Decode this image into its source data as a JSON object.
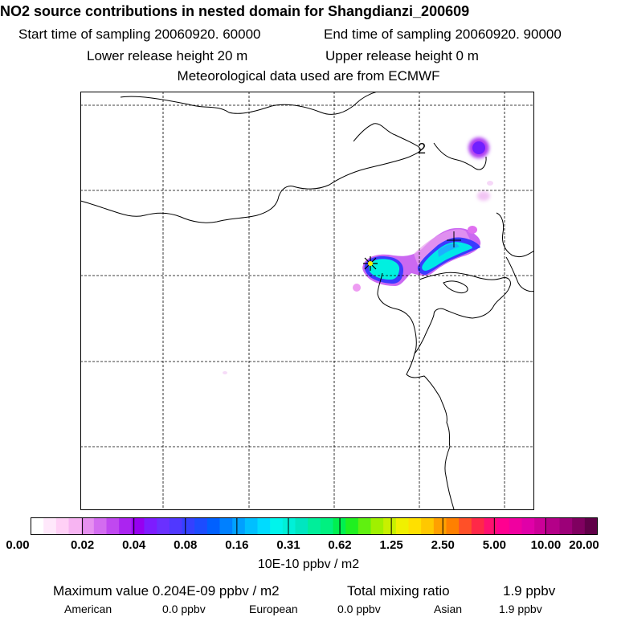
{
  "header": {
    "title": "NO2 source contributions in nested domain for Shangdianzi_200609",
    "start_label": "Start time of sampling 20060920. 60000",
    "end_label": "End time of sampling 20060920. 90000",
    "lower_label": "Lower release height   20 m",
    "upper_label": "Upper release height    0 m",
    "met_label": "Meteorological data used are from ECMWF"
  },
  "map": {
    "contour_label": "2",
    "colors": {
      "coast": "#000000",
      "grid": "#000000"
    }
  },
  "colorbar": {
    "ticks": [
      "0.00",
      "0.02",
      "0.04",
      "0.08",
      "0.16",
      "0.31",
      "0.62",
      "1.25",
      "2.50",
      "5.00",
      "10.00",
      "20.00"
    ],
    "units": "10E-10 ppbv / m2",
    "colors": [
      "#ffffff",
      "#ffe8fb",
      "#ffd0f6",
      "#f7b4f2",
      "#e690f0",
      "#d36cf0",
      "#c048f0",
      "#ab24f0",
      "#9600f0",
      "#7d1cff",
      "#6a30ff",
      "#5038ff",
      "#3440ff",
      "#1c4cff",
      "#0060ff",
      "#0080ff",
      "#00a0ff",
      "#00bfff",
      "#00dbff",
      "#00f4ec",
      "#00f0d8",
      "#00e6c0",
      "#00ee9a",
      "#00f080",
      "#00f050",
      "#20f020",
      "#60f010",
      "#a0f000",
      "#c8f000",
      "#f0f000",
      "#ffe000",
      "#ffc800",
      "#ffa000",
      "#ff8000",
      "#ff5028",
      "#ff2848",
      "#ff1070",
      "#ff0090",
      "#f000a0",
      "#e000a8",
      "#cc0098",
      "#b40088",
      "#9c0078",
      "#800060",
      "#600048"
    ]
  },
  "footer": {
    "max_label": "Maximum value  0.204E-09 ppbv / m2",
    "total_label": "Total mixing ratio",
    "total_value": "1.9 ppbv",
    "american_label": "American",
    "american_value": "0.0 ppbv",
    "european_label": "European",
    "european_value": "0.0 ppbv",
    "asian_label": "Asian",
    "asian_value": "1.9 ppbv"
  }
}
